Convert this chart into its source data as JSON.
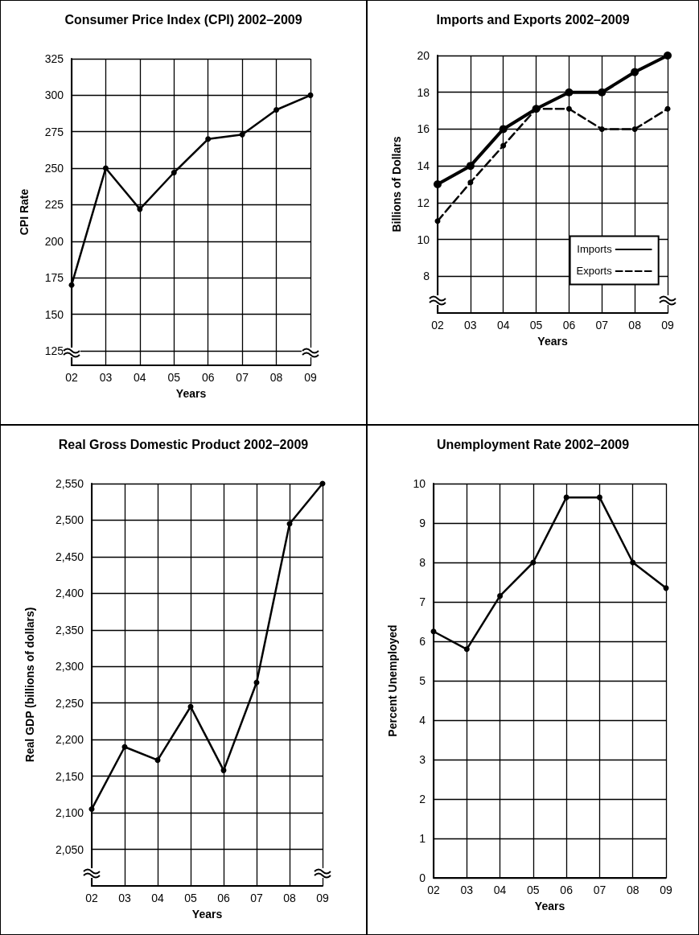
{
  "chart_data": [
    {
      "type": "line",
      "title": "Consumer Price Index (CPI) 2002–2009",
      "xlabel": "Years",
      "ylabel": "CPI Rate",
      "categories": [
        "02",
        "03",
        "04",
        "05",
        "06",
        "07",
        "08",
        "09"
      ],
      "series": [
        {
          "color": "#000000",
          "values": [
            170,
            250,
            222,
            247,
            270,
            273,
            290,
            300
          ]
        }
      ],
      "ylim": [
        115,
        325
      ],
      "yticks": [
        125,
        150,
        175,
        200,
        225,
        250,
        275,
        300,
        325
      ],
      "grid": true,
      "marker": "circle",
      "line_style": "solid"
    },
    {
      "type": "line",
      "title": "Imports and Exports 2002–2009",
      "xlabel": "Years",
      "ylabel": "Billions of Dollars",
      "categories": [
        "02",
        "03",
        "04",
        "05",
        "06",
        "07",
        "08",
        "09"
      ],
      "series": [
        {
          "name": "Imports",
          "color": "#000000",
          "line_style": "solid",
          "values": [
            13,
            14,
            16,
            17.1,
            18,
            18,
            19.1,
            20
          ]
        },
        {
          "name": "Exports",
          "color": "#000000",
          "line_style": "dashed",
          "values": [
            11,
            13.1,
            15.1,
            17.1,
            17.1,
            16,
            16,
            17.1
          ]
        }
      ],
      "ylim": [
        6,
        20
      ],
      "yticks": [
        8,
        10,
        12,
        14,
        16,
        18,
        20
      ],
      "grid": true,
      "marker": "circle",
      "legend": "bottom right"
    },
    {
      "type": "line",
      "title": "Real Gross Domestic Product 2002–2009",
      "xlabel": "Years",
      "ylabel": "Real GDP (billions of dollars)",
      "categories": [
        "02",
        "03",
        "04",
        "05",
        "06",
        "07",
        "08",
        "09"
      ],
      "series": [
        {
          "color": "#000000",
          "values": [
            2105,
            2190,
            2172,
            2245,
            2158,
            2278,
            2495,
            2550
          ]
        }
      ],
      "ylim": [
        2000,
        2550
      ],
      "yticks": [
        {
          "value": 2050,
          "label": "2,050"
        },
        {
          "value": 2100,
          "label": "2,100"
        },
        {
          "value": 2150,
          "label": "2,150"
        },
        {
          "value": 2200,
          "label": "2,200"
        },
        {
          "value": 2250,
          "label": "2,250"
        },
        {
          "value": 2300,
          "label": "2,300"
        },
        {
          "value": 2350,
          "label": "2,350"
        },
        {
          "value": 2400,
          "label": "2,400"
        },
        {
          "value": 2450,
          "label": "2,450"
        },
        {
          "value": 2500,
          "label": "2,500"
        },
        {
          "value": 2550,
          "label": "2,550"
        }
      ],
      "grid": true,
      "marker": "circle",
      "line_style": "solid"
    },
    {
      "type": "line",
      "title": "Unemployment Rate 2002–2009",
      "xlabel": "Years",
      "ylabel": "Percent Unemployed",
      "categories": [
        "02",
        "03",
        "04",
        "05",
        "06",
        "07",
        "08",
        "09"
      ],
      "series": [
        {
          "color": "#000000",
          "values": [
            6.25,
            5.8,
            7.15,
            8,
            9.65,
            9.65,
            8,
            7.35
          ]
        }
      ],
      "ylim": [
        0,
        10
      ],
      "yticks": [
        0,
        1,
        2,
        3,
        4,
        5,
        6,
        7,
        8,
        9,
        10
      ],
      "grid": true,
      "marker": "circle",
      "line_style": "solid"
    }
  ]
}
